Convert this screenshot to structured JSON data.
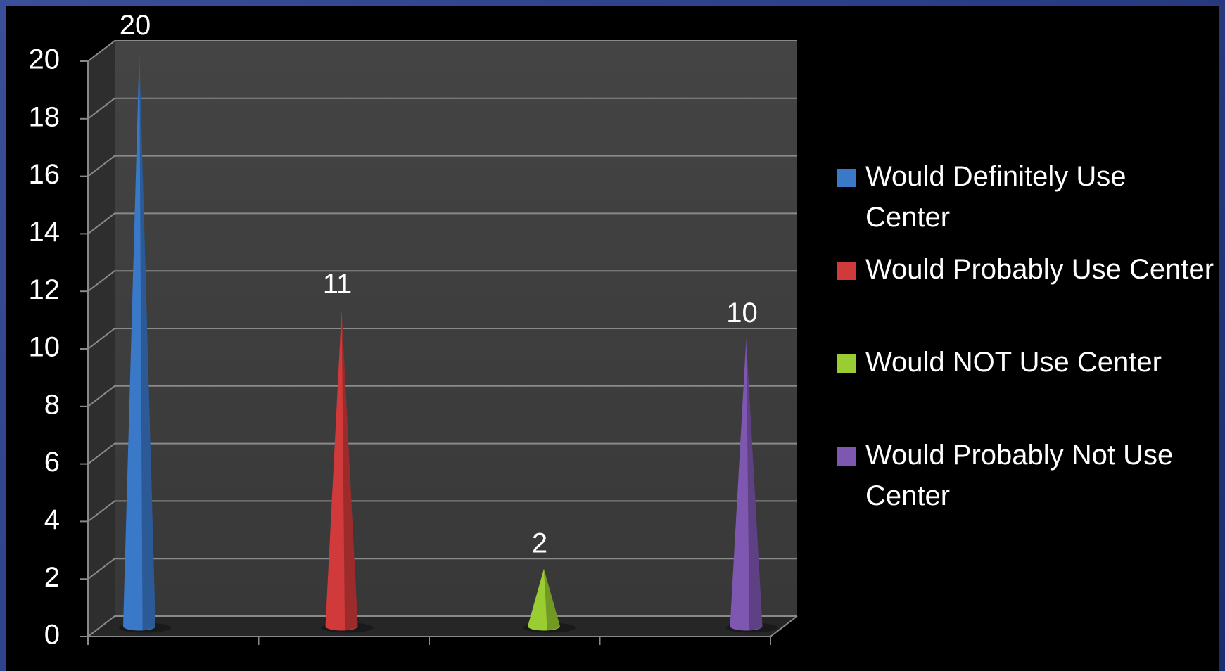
{
  "chart_data": {
    "type": "cone",
    "categories": [
      null,
      null,
      null,
      null
    ],
    "series": [
      {
        "name": "Would Definitely Use Center",
        "color": "#3a78c8",
        "values": [
          20,
          null,
          null,
          null
        ]
      },
      {
        "name": "Would Probably Use Center",
        "color": "#d03a3a",
        "values": [
          null,
          11,
          null,
          null
        ]
      },
      {
        "name": "Would NOT Use Center",
        "color": "#9acd32",
        "values": [
          null,
          null,
          2,
          null
        ]
      },
      {
        "name": "Would Probably Not Use Center",
        "color": "#7e57b0",
        "values": [
          null,
          null,
          null,
          10
        ]
      }
    ],
    "ylim": [
      0,
      20
    ],
    "yticks": [
      0,
      2,
      4,
      6,
      8,
      10,
      12,
      14,
      16,
      18,
      20
    ],
    "grid": true,
    "legend": "right"
  }
}
